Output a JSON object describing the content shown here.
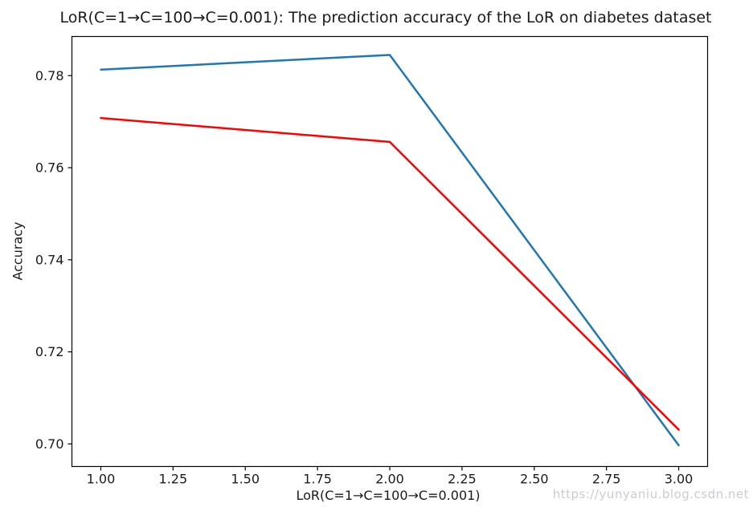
{
  "watermark": {
    "text": "https://yunyaniu.blog.csdn.net",
    "color": "#c9ccd6"
  },
  "chart_data": {
    "type": "line",
    "title": "LoR(C=1→C=100→C=0.001): The prediction accuracy of the LoR on diabetes dataset",
    "xlabel": "LoR(C=1→C=100→C=0.001)",
    "ylabel": "Accuracy",
    "x": [
      1,
      2,
      3
    ],
    "series": [
      {
        "name": "blue-series",
        "color": "#1f77b4",
        "values": [
          0.7813,
          0.7845,
          0.6997
        ]
      },
      {
        "name": "red-series",
        "color": "#ff0000",
        "values": [
          0.7708,
          0.7656,
          0.7031
        ]
      }
    ],
    "xlim": [
      0.9,
      3.1
    ],
    "ylim": [
      0.6951,
      0.7885
    ],
    "xtick_labels": [
      "1.00",
      "1.25",
      "1.50",
      "1.75",
      "2.00",
      "2.25",
      "2.50",
      "2.75",
      "3.00"
    ],
    "ytick_labels": [
      "0.70",
      "0.72",
      "0.74",
      "0.76",
      "0.78"
    ],
    "grid": false,
    "legend": null,
    "line_width": 2.5,
    "background": "#ffffff",
    "axis_color": "#000000",
    "text_color": "#1a1a1a",
    "tick_font_size": 16
  }
}
